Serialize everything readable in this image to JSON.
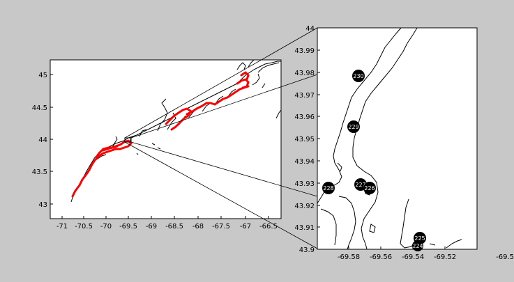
{
  "colors": {
    "figure_bg": "#c8c8c8",
    "axes_bg": "#ffffff",
    "coastline": "#000000",
    "highlight_coast": "#ff0000",
    "station_marker": "#000000",
    "station_label": "#ffffff"
  },
  "left_map": {
    "x_ticks": [
      "-71",
      "-70.5",
      "-70",
      "-69.5",
      "-69",
      "-68.5",
      "-68",
      "-67.5",
      "-67",
      "-66.5"
    ],
    "y_ticks": [
      "45",
      "44.5",
      "44",
      "43.5",
      "43"
    ]
  },
  "right_map": {
    "x_ticks": [
      "-69.58",
      "-69.56",
      "-69.54",
      "-69.52",
      "-69.5"
    ],
    "y_ticks": [
      "44",
      "43.99",
      "43.98",
      "43.97",
      "43.96",
      "43.95",
      "43.94",
      "43.93",
      "43.92",
      "43.91",
      "43.9"
    ],
    "stations": [
      {
        "label": "230",
        "lon": -69.572,
        "lat": 43.9785
      },
      {
        "label": "229",
        "lon": -69.573,
        "lat": 43.9555
      },
      {
        "label": "228",
        "lon": -69.588,
        "lat": 43.928
      },
      {
        "label": "227",
        "lon": -69.568,
        "lat": 43.929
      },
      {
        "label": "226",
        "lon": -69.564,
        "lat": 43.928
      },
      {
        "label": "225",
        "lon": -69.537,
        "lat": 43.905
      },
      {
        "label": "224",
        "lon": -69.538,
        "lat": 43.902
      }
    ]
  }
}
